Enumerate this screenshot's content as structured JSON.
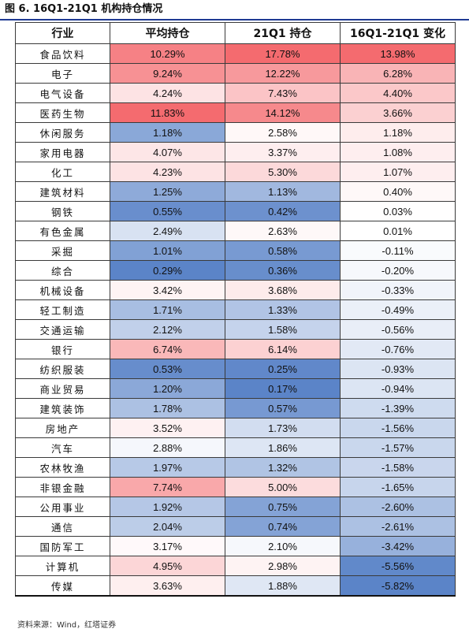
{
  "title": "图 6. 16Q1-21Q1 机构持仓情况",
  "source": "资料来源：Wind，红塔证券",
  "headers": [
    "行业",
    "平均持仓",
    "21Q1 持仓",
    "16Q1-21Q1 变化"
  ],
  "scale_colors": {
    "positive": "#f46b6f",
    "mid": "#ffffff",
    "negative": "#5b84c8"
  },
  "rows": [
    {
      "industry": "食品饮料",
      "avg": "10.29%",
      "q1": "17.78%",
      "chg": "13.98%"
    },
    {
      "industry": "电子",
      "avg": "9.24%",
      "q1": "12.22%",
      "chg": "6.28%"
    },
    {
      "industry": "电气设备",
      "avg": "4.24%",
      "q1": "7.43%",
      "chg": "4.40%"
    },
    {
      "industry": "医药生物",
      "avg": "11.83%",
      "q1": "14.12%",
      "chg": "3.66%"
    },
    {
      "industry": "休闲服务",
      "avg": "1.18%",
      "q1": "2.58%",
      "chg": "1.18%"
    },
    {
      "industry": "家用电器",
      "avg": "4.07%",
      "q1": "3.37%",
      "chg": "1.08%"
    },
    {
      "industry": "化工",
      "avg": "4.23%",
      "q1": "5.30%",
      "chg": "1.07%"
    },
    {
      "industry": "建筑材料",
      "avg": "1.25%",
      "q1": "1.13%",
      "chg": "0.40%"
    },
    {
      "industry": "钢铁",
      "avg": "0.55%",
      "q1": "0.42%",
      "chg": "0.03%"
    },
    {
      "industry": "有色金属",
      "avg": "2.49%",
      "q1": "2.63%",
      "chg": "0.01%"
    },
    {
      "industry": "采掘",
      "avg": "1.01%",
      "q1": "0.58%",
      "chg": "-0.11%"
    },
    {
      "industry": "综合",
      "avg": "0.29%",
      "q1": "0.36%",
      "chg": "-0.20%"
    },
    {
      "industry": "机械设备",
      "avg": "3.42%",
      "q1": "3.68%",
      "chg": "-0.33%"
    },
    {
      "industry": "轻工制造",
      "avg": "1.71%",
      "q1": "1.33%",
      "chg": "-0.49%"
    },
    {
      "industry": "交通运输",
      "avg": "2.12%",
      "q1": "1.58%",
      "chg": "-0.56%"
    },
    {
      "industry": "银行",
      "avg": "6.74%",
      "q1": "6.14%",
      "chg": "-0.76%"
    },
    {
      "industry": "纺织服装",
      "avg": "0.53%",
      "q1": "0.25%",
      "chg": "-0.93%"
    },
    {
      "industry": "商业贸易",
      "avg": "1.20%",
      "q1": "0.17%",
      "chg": "-0.94%"
    },
    {
      "industry": "建筑装饰",
      "avg": "1.78%",
      "q1": "0.57%",
      "chg": "-1.39%"
    },
    {
      "industry": "房地产",
      "avg": "3.52%",
      "q1": "1.73%",
      "chg": "-1.56%"
    },
    {
      "industry": "汽车",
      "avg": "2.88%",
      "q1": "1.86%",
      "chg": "-1.57%"
    },
    {
      "industry": "农林牧渔",
      "avg": "1.97%",
      "q1": "1.32%",
      "chg": "-1.58%"
    },
    {
      "industry": "非银金融",
      "avg": "7.74%",
      "q1": "5.00%",
      "chg": "-1.65%"
    },
    {
      "industry": "公用事业",
      "avg": "1.92%",
      "q1": "0.75%",
      "chg": "-2.60%"
    },
    {
      "industry": "通信",
      "avg": "2.04%",
      "q1": "0.74%",
      "chg": "-2.61%"
    },
    {
      "industry": "国防军工",
      "avg": "3.17%",
      "q1": "2.10%",
      "chg": "-3.42%"
    },
    {
      "industry": "计算机",
      "avg": "4.95%",
      "q1": "2.98%",
      "chg": "-5.56%"
    },
    {
      "industry": "传媒",
      "avg": "3.63%",
      "q1": "1.88%",
      "chg": "-5.82%"
    }
  ]
}
